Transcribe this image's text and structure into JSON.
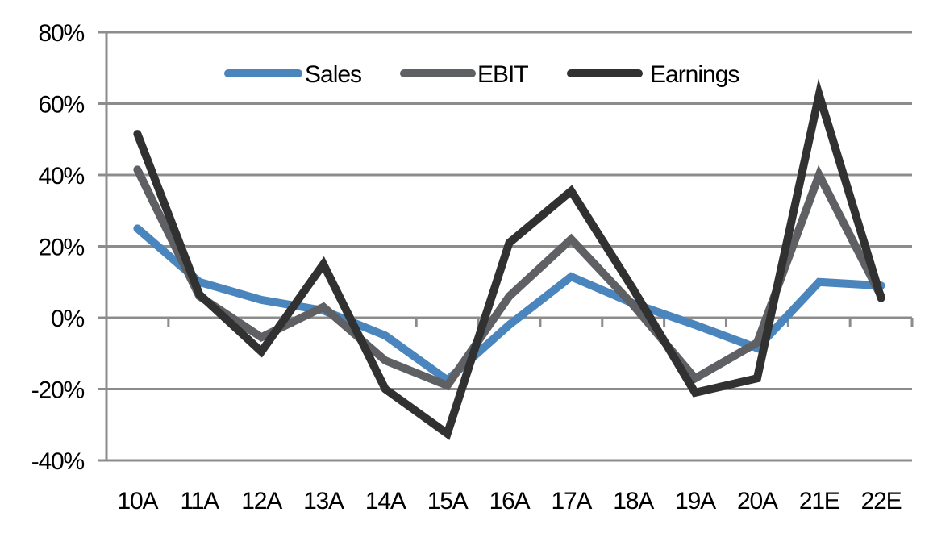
{
  "chart_data": {
    "type": "line",
    "title": "",
    "xlabel": "",
    "ylabel": "",
    "categories": [
      "10A",
      "11A",
      "12A",
      "13A",
      "14A",
      "15A",
      "16A",
      "17A",
      "18A",
      "19A",
      "20A",
      "21E",
      "22E"
    ],
    "series": [
      {
        "name": "Sales",
        "color": "#4a86bd",
        "values": [
          25,
          10,
          5,
          2,
          -5,
          -17.5,
          -2,
          11.5,
          4,
          -2,
          -8.5,
          10,
          9
        ]
      },
      {
        "name": "EBIT",
        "color": "#5f6063",
        "values": [
          41.5,
          6,
          -5.5,
          3,
          -12,
          -19,
          6,
          22,
          3.5,
          -17,
          -7,
          40,
          6
        ]
      },
      {
        "name": "Earnings",
        "color": "#313131",
        "values": [
          51.5,
          6.5,
          -9.5,
          15,
          -20,
          -32.5,
          21,
          35.5,
          8,
          -21,
          -17,
          62.5,
          5.5
        ]
      }
    ],
    "y_ticks": [
      80,
      60,
      40,
      20,
      0,
      -20,
      -40
    ],
    "y_tick_labels": [
      "80%",
      "60%",
      "40%",
      "20%",
      "0%",
      "-20%",
      "-40%"
    ],
    "ylim": [
      -40,
      80
    ],
    "y_unit": "%",
    "grid": true,
    "legend": {
      "placement": "top-center",
      "entries": [
        "Sales",
        "EBIT",
        "Earnings"
      ]
    }
  }
}
